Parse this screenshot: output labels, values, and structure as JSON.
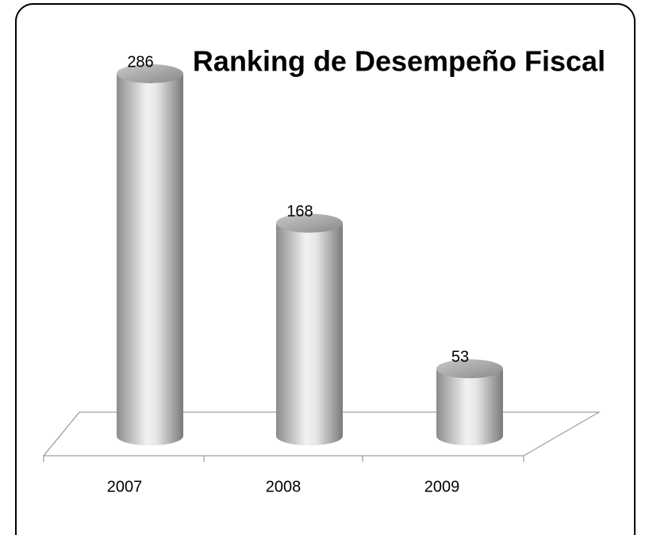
{
  "chart_data": {
    "type": "cylinder",
    "title": "Ranking de Desempeño Fiscal",
    "categories": [
      "2007",
      "2008",
      "2009"
    ],
    "values": [
      286,
      168,
      53
    ],
    "ylim": [
      0,
      300
    ]
  }
}
